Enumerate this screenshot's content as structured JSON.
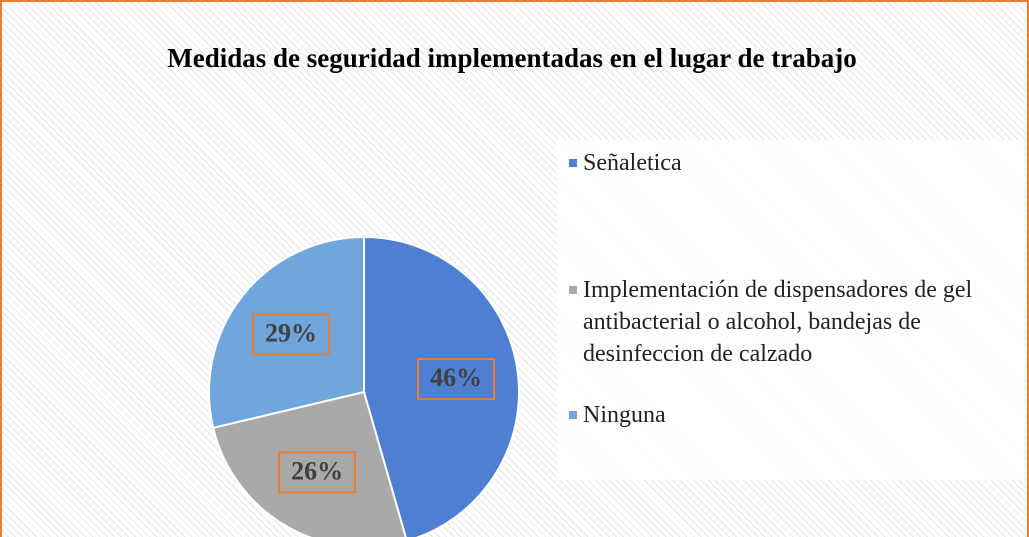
{
  "chart_data": {
    "type": "pie",
    "title": "Medidas de seguridad implementadas en el lugar de trabajo",
    "categories": [
      "Señaletica",
      "Implementación de dispensadores de gel antibacterial o alcohol, bandejas de desinfeccion de calzado",
      "Ninguna"
    ],
    "values": [
      46,
      26,
      29
    ],
    "value_labels": [
      "46%",
      "26%",
      "29%"
    ],
    "colors": [
      "#4f7fd0",
      "#a9a9a9",
      "#6fa6dc"
    ],
    "legend": "right"
  }
}
